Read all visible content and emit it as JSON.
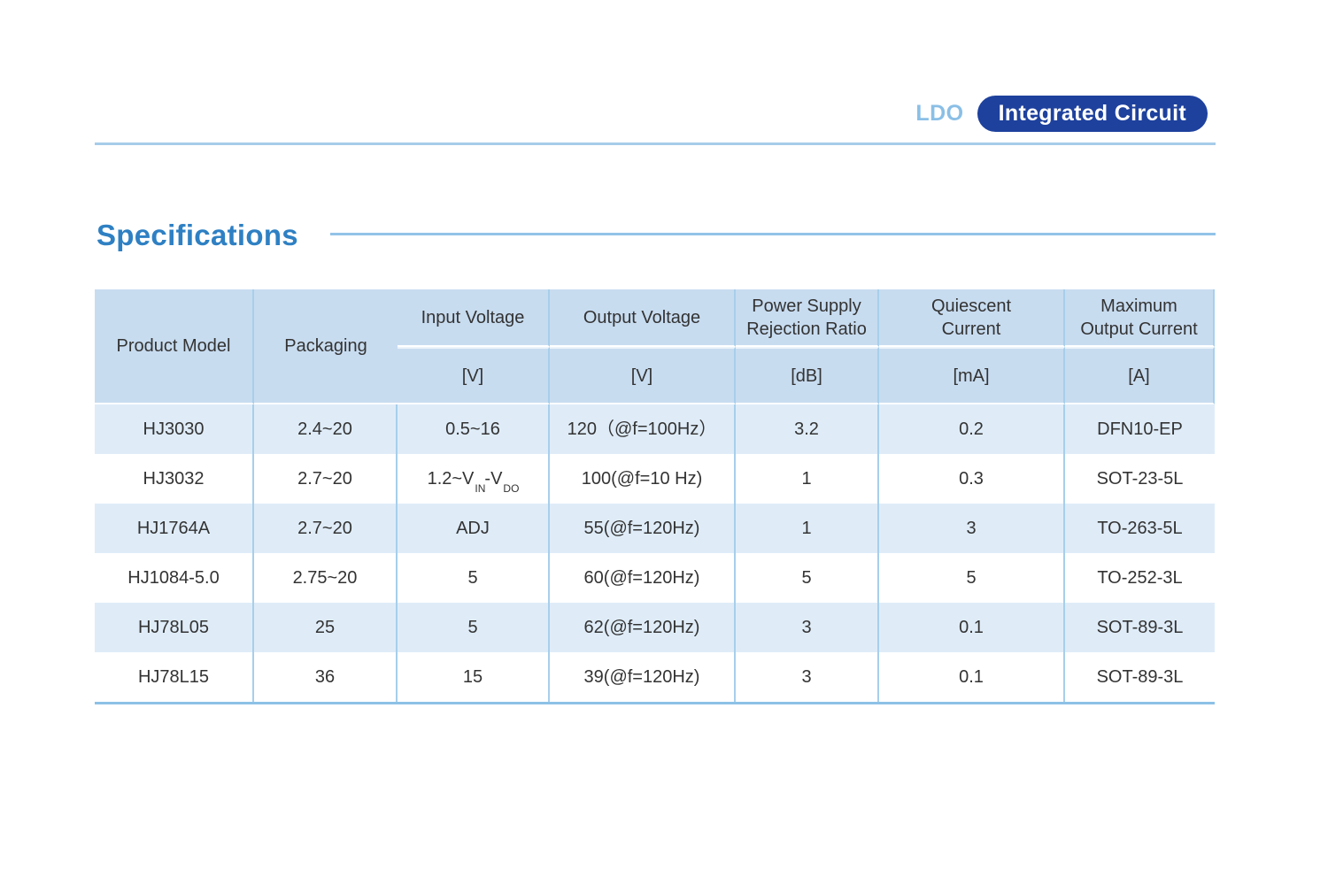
{
  "page": {
    "header": {
      "category_label": "LDO",
      "badge_label": "Integrated Circuit"
    },
    "section": {
      "title": "Specifications"
    },
    "table": {
      "columns": [
        {
          "label": "Product Model",
          "unit": ""
        },
        {
          "label": "Input Voltage",
          "unit": "[V]"
        },
        {
          "label": "Output Voltage",
          "unit": "[V]"
        },
        {
          "label": "Power Supply\nRejection Ratio",
          "unit": "[dB]"
        },
        {
          "label": "Quiescent\nCurrent",
          "unit": "[mA]"
        },
        {
          "label": "Maximum\nOutput Current",
          "unit": "[A]"
        },
        {
          "label": "Packaging",
          "unit": ""
        }
      ],
      "rows": [
        {
          "model": "HJ3030",
          "input_v": "2.4~20",
          "output_v": "0.5~16",
          "psrr": "120（@f=100Hz）",
          "iq": "3.2",
          "imax": "0.2",
          "package": "DFN10-EP"
        },
        {
          "model": "HJ3032",
          "input_v": "2.7~20",
          "output_v_parts": {
            "t1": "1.2~V",
            "sub1": "IN",
            "t2": "-V",
            "sub2": "DO"
          },
          "psrr": "100(@f=10 Hz)",
          "iq": "1",
          "imax": "0.3",
          "package": "SOT-23-5L"
        },
        {
          "model": "HJ1764A",
          "input_v": "2.7~20",
          "output_v": "ADJ",
          "psrr": "55(@f=120Hz)",
          "iq": "1",
          "imax": "3",
          "package": "TO-263-5L"
        },
        {
          "model": "HJ1084-5.0",
          "input_v": "2.75~20",
          "output_v": "5",
          "psrr": "60(@f=120Hz)",
          "iq": "5",
          "imax": "5",
          "package": "TO-252-3L"
        },
        {
          "model": "HJ78L05",
          "input_v": "25",
          "output_v": "5",
          "psrr": "62(@f=120Hz)",
          "iq": "3",
          "imax": "0.1",
          "package": "SOT-89-3L"
        },
        {
          "model": "HJ78L15",
          "input_v": "36",
          "output_v": "15",
          "psrr": "39(@f=120Hz)",
          "iq": "3",
          "imax": "0.1",
          "package": "SOT-89-3L"
        }
      ]
    },
    "colors": {
      "badge_bg": "#1e419d",
      "category_text": "#8abfe6",
      "section_title": "#2e80c3",
      "top_rule": "#a6cce9",
      "section_rule": "#92c3e8",
      "table_header_bg": "#c8dcf0",
      "table_row_alt_bg": "#dfecf8",
      "table_border": "#a7cfeb",
      "table_bottom_rule": "#8cc1e7",
      "body_text": "#333333"
    }
  }
}
